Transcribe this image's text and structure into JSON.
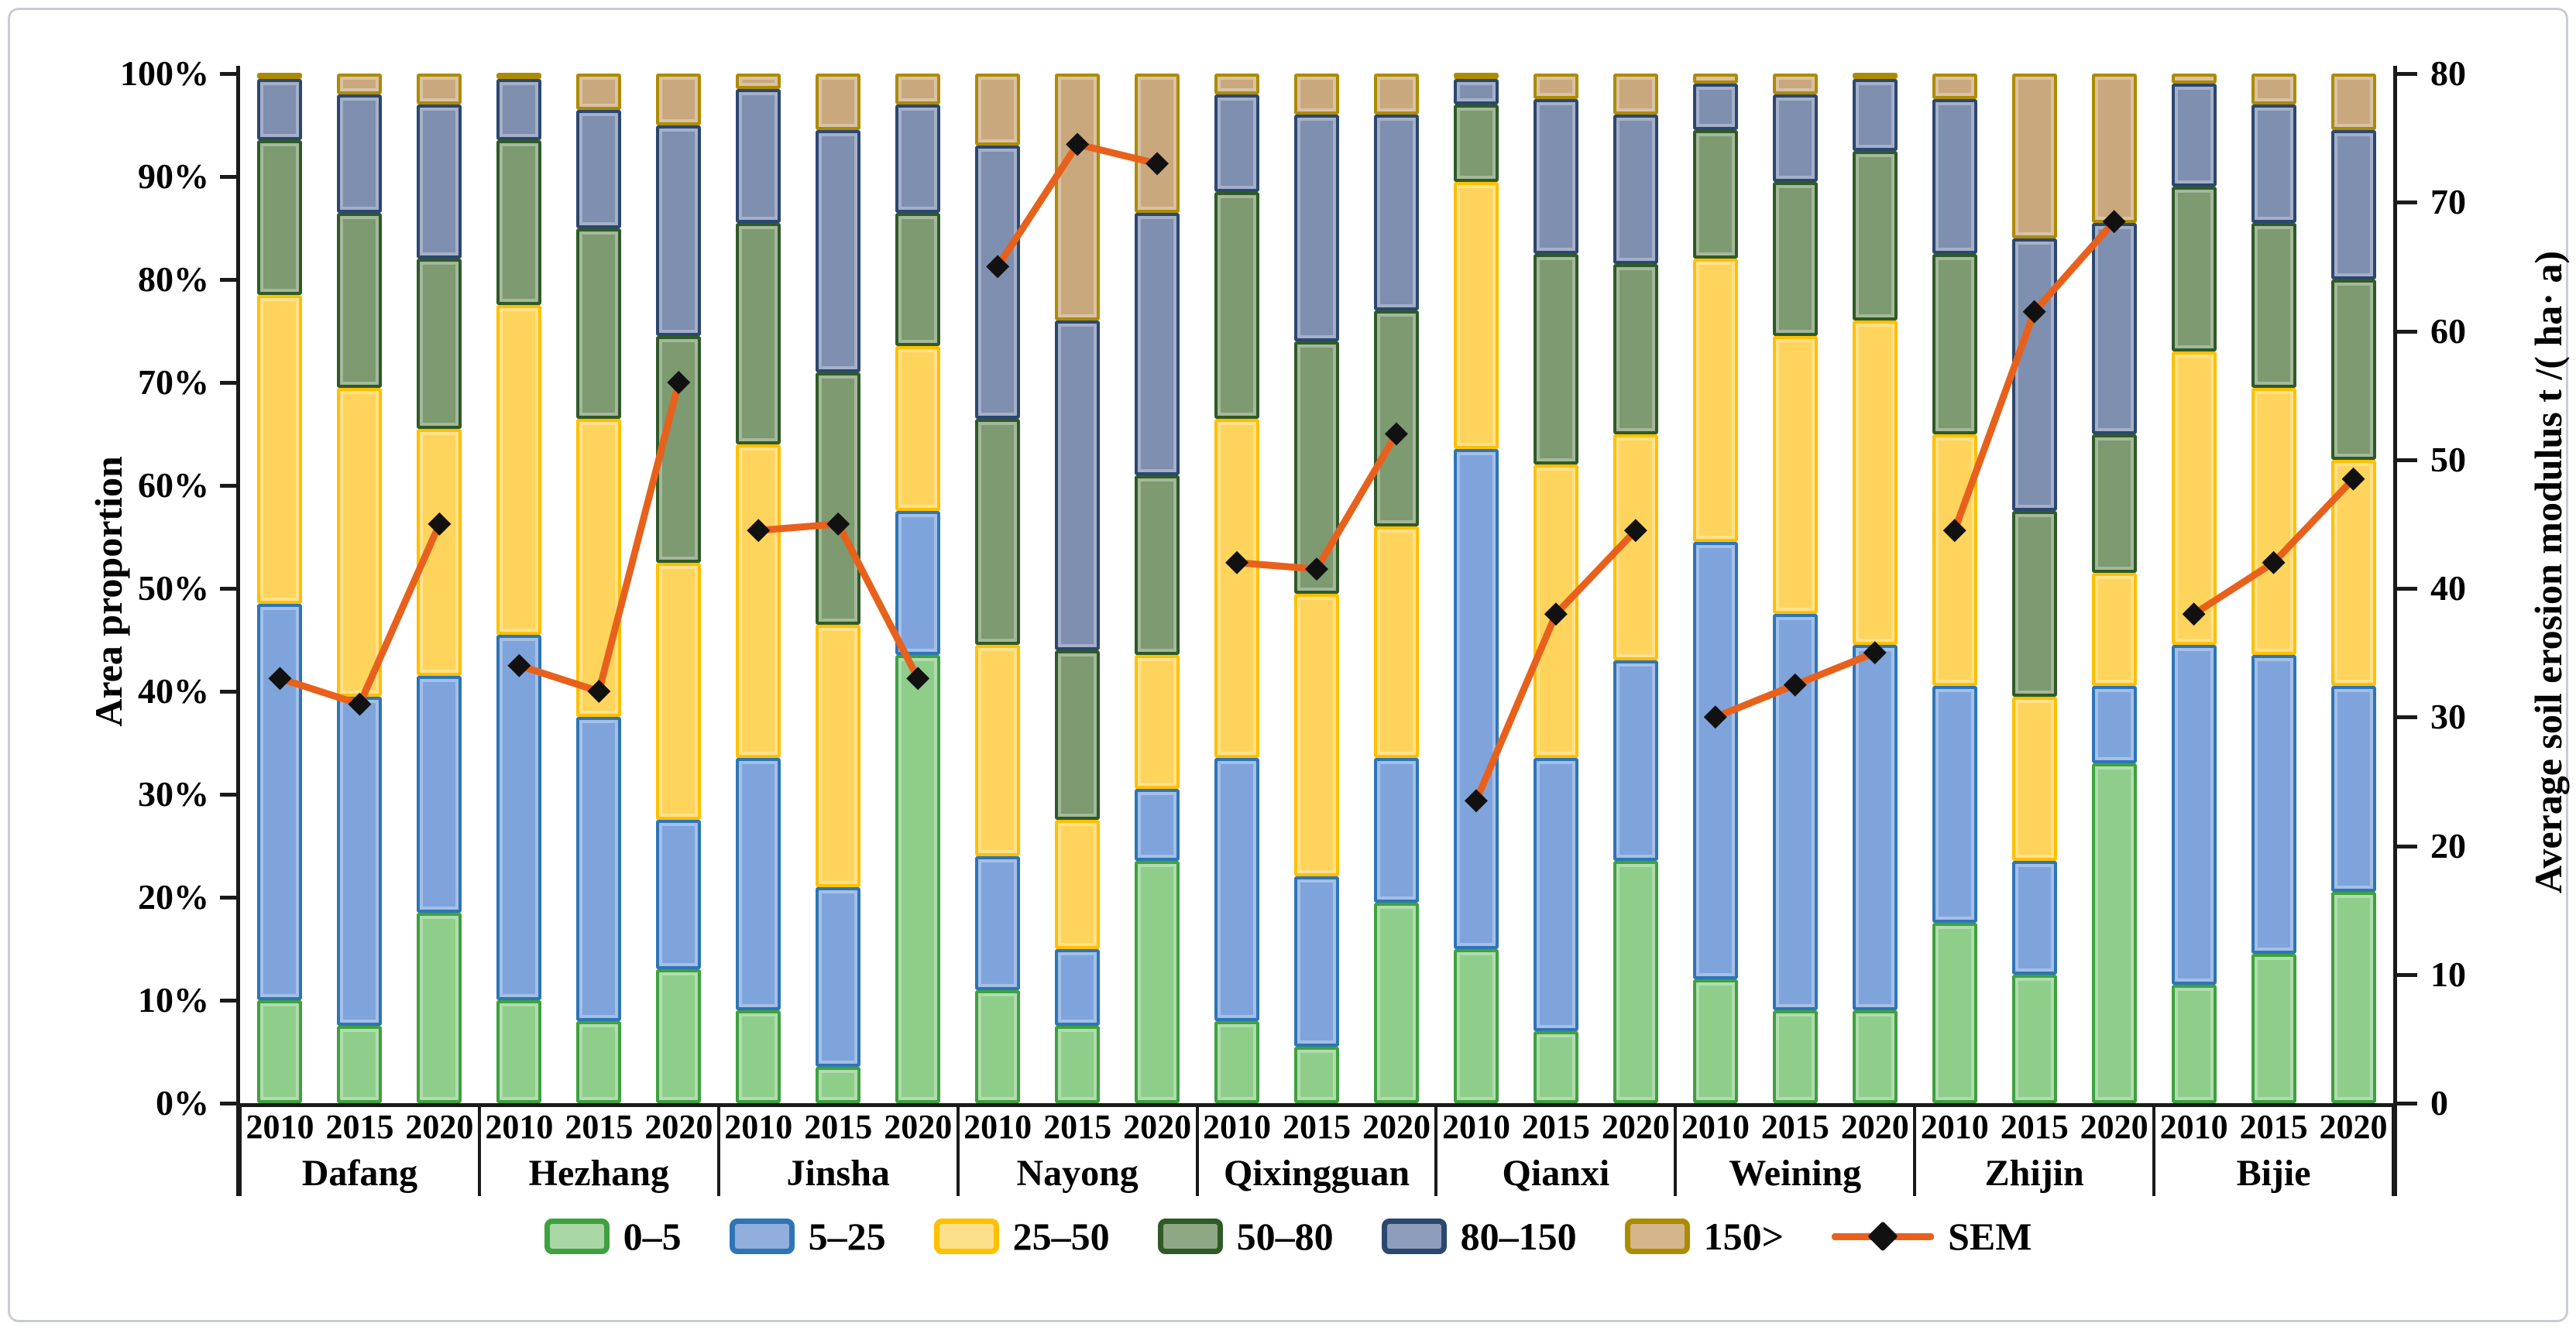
{
  "chart_data": {
    "type": "stacked-bar+line",
    "title": "",
    "regions": [
      "Dafang",
      "Hezhang",
      "Jinsha",
      "Nayong",
      "Qixingguan",
      "Qianxi",
      "Weining",
      "Zhijin",
      "Bijie"
    ],
    "years": [
      "2010",
      "2015",
      "2020"
    ],
    "stack_categories": [
      "0–5",
      "5–25",
      "25–50",
      "50–80",
      "80–150",
      "150>"
    ],
    "stack_colors": [
      {
        "fill": "#8FCD8B",
        "border": "#3FA13F"
      },
      {
        "fill": "#7FA4DC",
        "border": "#2E75B6"
      },
      {
        "fill": "#FFD45C",
        "border": "#FFC000"
      },
      {
        "fill": "#7D9A70",
        "border": "#2F5A28"
      },
      {
        "fill": "#7E8FB0",
        "border": "#2C4770"
      },
      {
        "fill": "#C9A87E",
        "border": "#AD8B00"
      }
    ],
    "legend_swatch_fills": [
      "#A9D6A5",
      "#92AEDC",
      "#FFE08A",
      "#8FA884",
      "#8E9DBB",
      "#D4B58C"
    ],
    "left_axis": {
      "label": "Area proportion",
      "min": 0,
      "max": 100,
      "step": 10,
      "ticks": [
        "0%",
        "10%",
        "20%",
        "30%",
        "40%",
        "50%",
        "60%",
        "70%",
        "80%",
        "90%",
        "100%"
      ]
    },
    "right_axis": {
      "label": "Average soil erosion modulus t /( ha· a)",
      "min": 0,
      "max": 80,
      "step": 10,
      "ticks": [
        "0",
        "10",
        "20",
        "30",
        "40",
        "50",
        "60",
        "70",
        "80"
      ]
    },
    "bars_pct": [
      [
        [
          10,
          38.5,
          30,
          15,
          6,
          0.5
        ],
        [
          7.5,
          32,
          30,
          17,
          11.5,
          2
        ],
        [
          18.5,
          23,
          24,
          16.5,
          15,
          3
        ]
      ],
      [
        [
          10,
          35.5,
          32,
          16,
          6,
          0.5
        ],
        [
          8,
          29.5,
          29,
          18.5,
          11.5,
          3.5
        ],
        [
          13,
          14.5,
          25,
          22,
          20.5,
          5
        ]
      ],
      [
        [
          9,
          24.5,
          30.5,
          21.5,
          13,
          1.5
        ],
        [
          3.5,
          17.5,
          25.5,
          24.5,
          23.5,
          5.5
        ],
        [
          43.5,
          14,
          16,
          13,
          10.5,
          3
        ]
      ],
      [
        [
          11,
          13,
          20.5,
          22,
          26.5,
          7
        ],
        [
          7.5,
          7.5,
          12.5,
          16.5,
          32,
          24
        ],
        [
          23.5,
          7,
          13,
          17.5,
          25.5,
          13.5
        ]
      ],
      [
        [
          8,
          25.5,
          33,
          22,
          9.5,
          2
        ],
        [
          5.5,
          16.5,
          27.5,
          24.5,
          22,
          4
        ],
        [
          19.5,
          14,
          22.5,
          21,
          19,
          4
        ]
      ],
      [
        [
          15,
          48.5,
          26,
          7.5,
          2.5,
          0.5
        ],
        [
          7,
          26.5,
          28.5,
          20.5,
          15,
          2.5
        ],
        [
          23.5,
          19.5,
          22,
          16.5,
          14.5,
          4
        ]
      ],
      [
        [
          12,
          42.5,
          27.5,
          12.5,
          4.5,
          1
        ],
        [
          9,
          38.5,
          27,
          15,
          8.5,
          2
        ],
        [
          9,
          35.5,
          31.5,
          16.5,
          7,
          0.5
        ]
      ],
      [
        [
          17.5,
          23,
          24.5,
          17.5,
          15,
          2.5
        ],
        [
          12.5,
          11,
          16,
          18,
          26.5,
          16
        ],
        [
          33,
          7.5,
          11,
          13.5,
          20.5,
          14.5
        ]
      ],
      [
        [
          11.5,
          33,
          28.5,
          16,
          10,
          1
        ],
        [
          14.5,
          29,
          26,
          16,
          11.5,
          3
        ],
        [
          20.5,
          20,
          22,
          17.5,
          14.5,
          5.5
        ]
      ]
    ],
    "sem": {
      "name": "SEM",
      "line_color": "#E8611C",
      "marker_color": "#111111",
      "values": [
        [
          33,
          31,
          45
        ],
        [
          34,
          32,
          56
        ],
        [
          44.5,
          45,
          33
        ],
        [
          65,
          74.5,
          73
        ],
        [
          42,
          41.5,
          52
        ],
        [
          23.5,
          38,
          44.5
        ],
        [
          30,
          32.5,
          35
        ],
        [
          44.5,
          61.5,
          68.5
        ],
        [
          38,
          42,
          48.5
        ]
      ]
    },
    "layout": {
      "legend_position": "bottom",
      "grid": false,
      "background": "#ffffff"
    }
  }
}
